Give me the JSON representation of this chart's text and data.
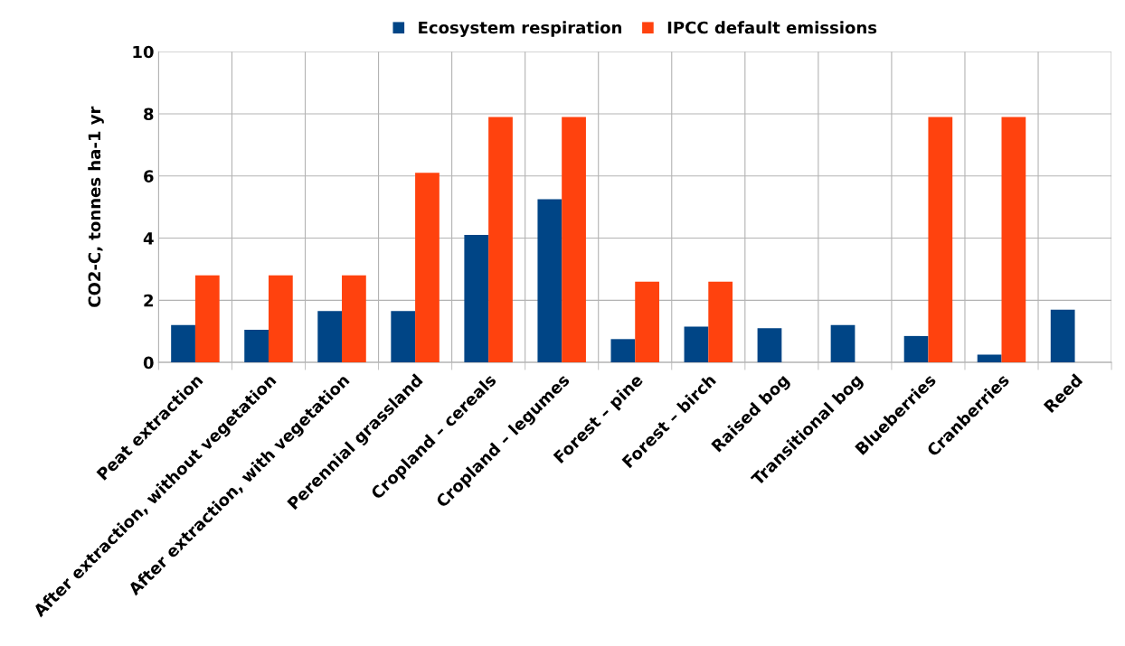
{
  "chart_data": {
    "type": "bar",
    "ylabel": "CO2-C, tonnes ha-1 yr",
    "categories": [
      "Peat extraction",
      "After extraction, without vegetation",
      "After extraction, with vegetation",
      "Perennial grassland",
      "Cropland – cereals",
      "Cropland – legumes",
      "Forest – pine",
      "Forest – birch",
      "Raised bog",
      "Transitional bog",
      "Blueberries",
      "Cranberries",
      "Reed"
    ],
    "series": [
      {
        "name": "Ecosystem respiration",
        "color": "#004586",
        "values": [
          1.2,
          1.05,
          1.65,
          1.65,
          4.1,
          5.25,
          0.75,
          1.15,
          1.1,
          1.2,
          0.85,
          0.25,
          1.7
        ]
      },
      {
        "name": "IPCC default emissions",
        "color": "#ff420e",
        "values": [
          2.8,
          2.8,
          2.8,
          6.1,
          7.9,
          7.9,
          2.6,
          2.6,
          null,
          null,
          7.9,
          7.9,
          null
        ]
      }
    ],
    "ylim": [
      0,
      10
    ],
    "yticks": [
      0,
      2,
      4,
      6,
      8,
      10
    ],
    "grid": true,
    "legend": "top"
  }
}
